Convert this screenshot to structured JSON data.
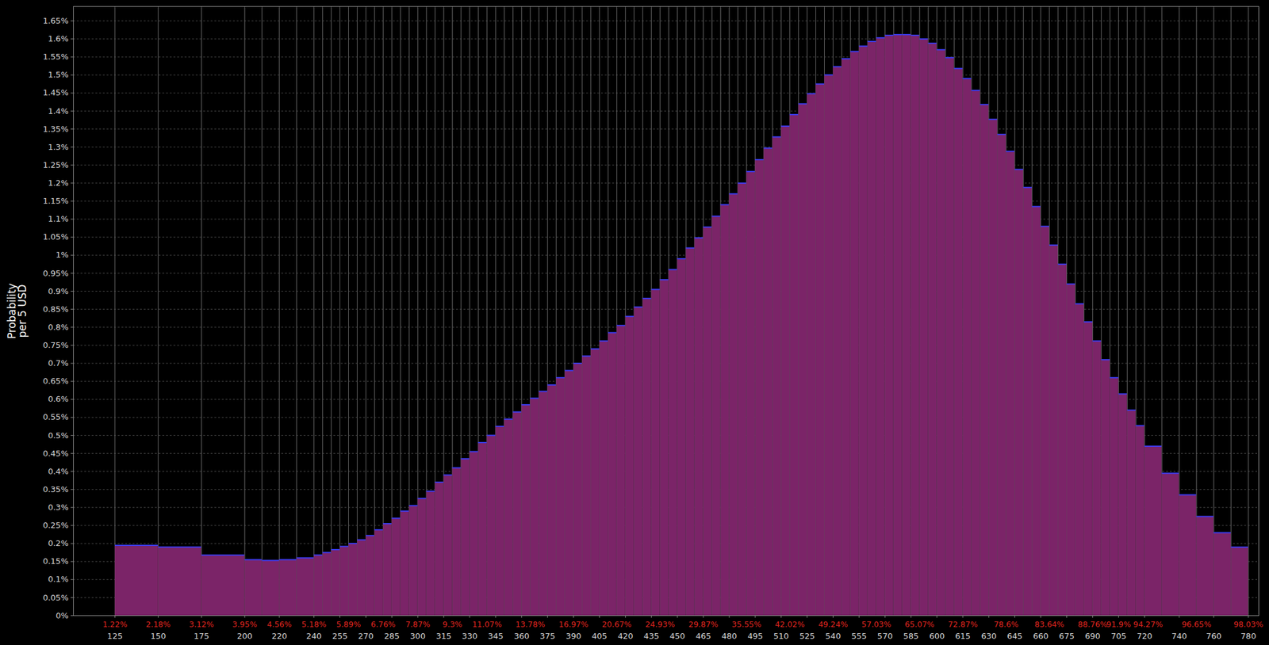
{
  "chart_data": {
    "type": "histogram",
    "y_label": "Probability\nper 5 USD",
    "color": "#7b2468",
    "grid": true,
    "bins": [
      125,
      150,
      175,
      200,
      210,
      220,
      230,
      240,
      245,
      250,
      255,
      260,
      265,
      270,
      275,
      280,
      285,
      290,
      295,
      300,
      305,
      310,
      315,
      320,
      325,
      330,
      335,
      340,
      345,
      350,
      355,
      360,
      365,
      370,
      375,
      380,
      385,
      390,
      395,
      400,
      405,
      410,
      415,
      420,
      425,
      430,
      435,
      440,
      445,
      450,
      455,
      460,
      465,
      470,
      475,
      480,
      485,
      490,
      495,
      500,
      505,
      510,
      515,
      520,
      525,
      530,
      535,
      540,
      545,
      550,
      555,
      560,
      565,
      570,
      575,
      580,
      585,
      590,
      595,
      600,
      605,
      610,
      615,
      620,
      625,
      630,
      635,
      640,
      645,
      650,
      655,
      660,
      665,
      670,
      675,
      680,
      685,
      690,
      695,
      700,
      705,
      710,
      715,
      720,
      730,
      740,
      750,
      760,
      770,
      780
    ],
    "values": [
      0.195,
      0.19,
      0.168,
      0.155,
      0.153,
      0.155,
      0.16,
      0.168,
      0.175,
      0.183,
      0.192,
      0.2,
      0.21,
      0.222,
      0.238,
      0.255,
      0.27,
      0.29,
      0.305,
      0.325,
      0.345,
      0.37,
      0.39,
      0.41,
      0.435,
      0.455,
      0.48,
      0.5,
      0.525,
      0.545,
      0.565,
      0.585,
      0.603,
      0.622,
      0.64,
      0.66,
      0.68,
      0.7,
      0.72,
      0.74,
      0.762,
      0.785,
      0.805,
      0.83,
      0.856,
      0.88,
      0.905,
      0.932,
      0.96,
      0.99,
      1.02,
      1.048,
      1.078,
      1.108,
      1.14,
      1.17,
      1.2,
      1.232,
      1.265,
      1.297,
      1.328,
      1.358,
      1.39,
      1.42,
      1.448,
      1.475,
      1.5,
      1.523,
      1.545,
      1.565,
      1.58,
      1.593,
      1.603,
      1.61,
      1.612,
      1.612,
      1.61,
      1.6,
      1.588,
      1.57,
      1.548,
      1.518,
      1.49,
      1.457,
      1.418,
      1.377,
      1.335,
      1.288,
      1.238,
      1.188,
      1.135,
      1.08,
      1.028,
      0.975,
      0.92,
      0.865,
      0.815,
      0.762,
      0.71,
      0.66,
      0.615,
      0.57,
      0.527,
      0.47,
      0.395,
      0.335,
      0.275,
      0.23,
      0.19
    ],
    "xlim": [
      101,
      786
    ],
    "xticks": [
      125,
      150,
      175,
      200,
      220,
      240,
      255,
      270,
      285,
      300,
      315,
      330,
      345,
      360,
      375,
      390,
      405,
      420,
      435,
      450,
      465,
      480,
      495,
      510,
      525,
      540,
      555,
      570,
      585,
      600,
      615,
      630,
      645,
      660,
      675,
      690,
      705,
      720,
      740,
      760,
      780
    ],
    "ylim": [
      0,
      1.69
    ],
    "yticks": [
      {
        "value": 0,
        "label": "0%"
      },
      {
        "value": 0.05,
        "label": "0.05%"
      },
      {
        "value": 0.1,
        "label": "0.1%"
      },
      {
        "value": 0.15,
        "label": "0.15%"
      },
      {
        "value": 0.2,
        "label": "0.2%"
      },
      {
        "value": 0.25,
        "label": "0.25%"
      },
      {
        "value": 0.3,
        "label": "0.3%"
      },
      {
        "value": 0.35,
        "label": "0.35%"
      },
      {
        "value": 0.4,
        "label": "0.4%"
      },
      {
        "value": 0.45,
        "label": "0.45%"
      },
      {
        "value": 0.5,
        "label": "0.5%"
      },
      {
        "value": 0.55,
        "label": "0.55%"
      },
      {
        "value": 0.6,
        "label": "0.6%"
      },
      {
        "value": 0.65,
        "label": "0.65%"
      },
      {
        "value": 0.7,
        "label": "0.7%"
      },
      {
        "value": 0.75,
        "label": "0.75%"
      },
      {
        "value": 0.8,
        "label": "0.8%"
      },
      {
        "value": 0.85,
        "label": "0.85%"
      },
      {
        "value": 0.9,
        "label": "0.9%"
      },
      {
        "value": 0.95,
        "label": "0.95%"
      },
      {
        "value": 1,
        "label": "1%"
      },
      {
        "value": 1.05,
        "label": "1.05%"
      },
      {
        "value": 1.1,
        "label": "1.1%"
      },
      {
        "value": 1.15,
        "label": "1.15%"
      },
      {
        "value": 1.2,
        "label": "1.2%"
      },
      {
        "value": 1.25,
        "label": "1.25%"
      },
      {
        "value": 1.3,
        "label": "1.3%"
      },
      {
        "value": 1.35,
        "label": "1.35%"
      },
      {
        "value": 1.4,
        "label": "1.4%"
      },
      {
        "value": 1.45,
        "label": "1.45%"
      },
      {
        "value": 1.5,
        "label": "1.5%"
      },
      {
        "value": 1.55,
        "label": "1.55%"
      },
      {
        "value": 1.6,
        "label": "1.6%"
      },
      {
        "value": 1.65,
        "label": "1.65%"
      }
    ],
    "annotations": [
      {
        "x": 125,
        "text": "1.22%"
      },
      {
        "x": 150,
        "text": "2.18%"
      },
      {
        "x": 175,
        "text": "3.12%"
      },
      {
        "x": 200,
        "text": "3.95%"
      },
      {
        "x": 220,
        "text": "4.56%"
      },
      {
        "x": 240,
        "text": "5.18%"
      },
      {
        "x": 260,
        "text": "5.89%"
      },
      {
        "x": 280,
        "text": "6.76%"
      },
      {
        "x": 300,
        "text": "7.87%"
      },
      {
        "x": 320,
        "text": "9.3%"
      },
      {
        "x": 340,
        "text": "11.07%"
      },
      {
        "x": 365,
        "text": "13.78%"
      },
      {
        "x": 390,
        "text": "16.97%"
      },
      {
        "x": 415,
        "text": "20.67%"
      },
      {
        "x": 440,
        "text": "24.93%"
      },
      {
        "x": 465,
        "text": "29.87%"
      },
      {
        "x": 490,
        "text": "35.55%"
      },
      {
        "x": 515,
        "text": "42.02%"
      },
      {
        "x": 540,
        "text": "49.24%"
      },
      {
        "x": 565,
        "text": "57.03%"
      },
      {
        "x": 590,
        "text": "65.07%"
      },
      {
        "x": 615,
        "text": "72.87%"
      },
      {
        "x": 640,
        "text": "78.6%"
      },
      {
        "x": 665,
        "text": "83.64%"
      },
      {
        "x": 690,
        "text": "88.76%"
      },
      {
        "x": 705,
        "text": "91.9%"
      },
      {
        "x": 722,
        "text": "94.27%"
      },
      {
        "x": 750,
        "text": "96.65%"
      },
      {
        "x": 780,
        "text": "98.03%"
      }
    ]
  }
}
